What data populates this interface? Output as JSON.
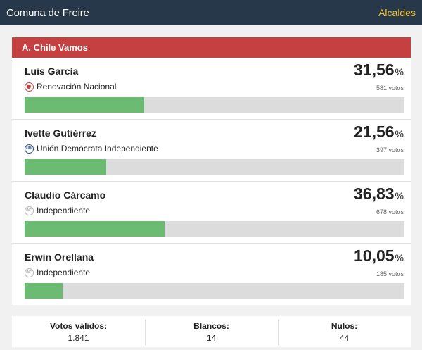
{
  "header": {
    "title": "Comuna de Freire",
    "link": "Alcaldes"
  },
  "pact": {
    "name": "A. Chile Vamos"
  },
  "candidates": [
    {
      "name": "Luis García",
      "party": "Renovación Nacional",
      "logo": "rn",
      "pct": "31,56",
      "pct_value": 31.56,
      "votes": "581 votos"
    },
    {
      "name": "Ivette Gutiérrez",
      "party": "Unión Demócrata Independiente",
      "logo": "udi",
      "pct": "21,56",
      "pct_value": 21.56,
      "votes": "397 votos"
    },
    {
      "name": "Claudio Cárcamo",
      "party": "Independiente",
      "logo": "ind",
      "pct": "36,83",
      "pct_value": 36.83,
      "votes": "678 votos"
    },
    {
      "name": "Erwin Orellana",
      "party": "Independiente",
      "logo": "ind",
      "pct": "10,05",
      "pct_value": 10.05,
      "votes": "185 votos"
    }
  ],
  "pct_symbol": "%",
  "footer": {
    "valid_label": "Votos válidos:",
    "valid_value": "1.841",
    "blank_label": "Blancos:",
    "blank_value": "14",
    "null_label": "Nulos:",
    "null_value": "44"
  },
  "colors": {
    "header_bg": "#27384a",
    "link": "#f2c230",
    "pact_bg": "#c54141",
    "bar_fill": "#6cbb72",
    "bar_bg": "#dcdcdc"
  }
}
